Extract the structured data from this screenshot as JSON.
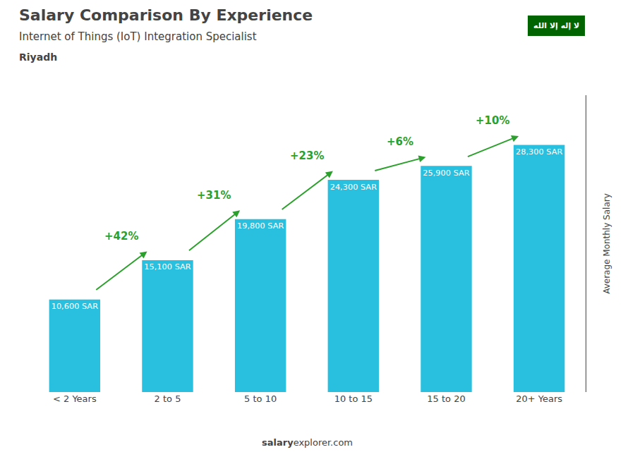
{
  "chart_data": {
    "type": "bar",
    "title": "Salary Comparison By Experience",
    "subtitle": "Internet of Things (IoT) Integration Specialist",
    "city": "Riyadh",
    "ylabel": "Average Monthly Salary",
    "watermark": [
      "salary",
      "explorer.com"
    ],
    "flag_text": "لا إله إلا الله",
    "categories": [
      "< 2 Years",
      "2 to 5",
      "5 to 10",
      "10 to 15",
      "15 to 20",
      "20+ Years"
    ],
    "values": [
      10600,
      15100,
      19800,
      24300,
      25900,
      28300
    ],
    "value_labels": [
      "10,600 SAR",
      "15,100 SAR",
      "19,800 SAR",
      "24,300 SAR",
      "25,900 SAR",
      "28,300 SAR"
    ],
    "data_labels": true,
    "color": "#29bfdf",
    "ylim": [
      0,
      34000
    ],
    "tick_labels": "x",
    "grid": false,
    "annotations": [
      {
        "text": "+42%",
        "from": "< 2 Years",
        "to": "2 to 5"
      },
      {
        "text": "+31%",
        "from": "2 to 5",
        "to": "5 to 10"
      },
      {
        "text": "+23%",
        "from": "5 to 10",
        "to": "10 to 15"
      },
      {
        "text": "+6%",
        "from": "10 to 15",
        "to": "15 to 20"
      },
      {
        "text": "+10%",
        "from": "15 to 20",
        "to": "20+ Years"
      }
    ]
  }
}
